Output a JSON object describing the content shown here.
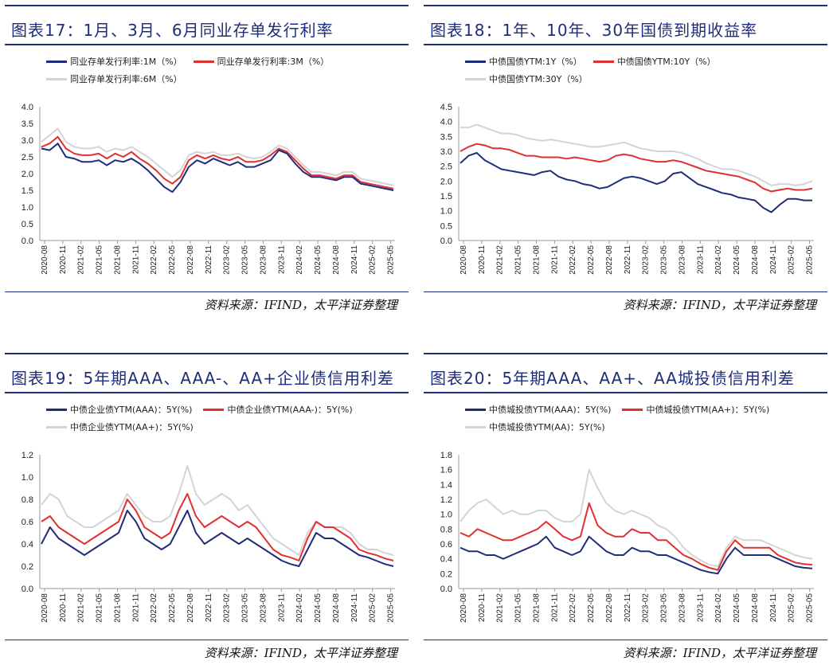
{
  "source_text": "资料来源：IFIND，太平洋证券整理",
  "panels": [
    {
      "title": "图表17：1月、3月、6月同业存单发行利率",
      "legend_rows": [
        [
          0,
          1
        ],
        [
          2
        ]
      ],
      "chart_data": {
        "type": "line",
        "title": "图表17：1月、3月、6月同业存单发行利率",
        "xlabel": "",
        "ylabel": "",
        "ylim": [
          0,
          4.0
        ],
        "yticks": [
          "4.0",
          "3.5",
          "3.0",
          "2.5",
          "2.0",
          "1.5",
          "1.0",
          "0.5",
          "0.0"
        ],
        "xticks": [
          "2020-08",
          "2020-11",
          "2021-02",
          "2021-05",
          "2021-08",
          "2021-11",
          "2022-02",
          "2022-05",
          "2022-08",
          "2022-11",
          "2023-02",
          "2023-05",
          "2023-08",
          "2023-11",
          "2024-02",
          "2024-05",
          "2024-08",
          "2024-11",
          "2025-02",
          "2025-05"
        ],
        "grid": false,
        "legend_position": "top-left",
        "series": [
          {
            "name": "同业存单发行利率:1M（%）",
            "color": "#1f2d7a",
            "values": [
              2.75,
              2.7,
              2.9,
              2.5,
              2.45,
              2.35,
              2.35,
              2.4,
              2.25,
              2.4,
              2.35,
              2.45,
              2.3,
              2.1,
              1.85,
              1.6,
              1.45,
              1.75,
              2.2,
              2.4,
              2.3,
              2.45,
              2.35,
              2.25,
              2.35,
              2.2,
              2.2,
              2.3,
              2.4,
              2.7,
              2.6,
              2.3,
              2.05,
              1.9,
              1.9,
              1.85,
              1.8,
              1.9,
              1.9,
              1.7,
              1.65,
              1.6,
              1.55,
              1.5
            ]
          },
          {
            "name": "同业存单发行利率:3M（%）",
            "color": "#e03030",
            "values": [
              2.8,
              2.9,
              3.1,
              2.75,
              2.6,
              2.55,
              2.55,
              2.6,
              2.45,
              2.6,
              2.5,
              2.65,
              2.45,
              2.3,
              2.1,
              1.85,
              1.7,
              1.9,
              2.4,
              2.55,
              2.45,
              2.55,
              2.45,
              2.4,
              2.5,
              2.35,
              2.35,
              2.4,
              2.55,
              2.75,
              2.65,
              2.4,
              2.15,
              1.95,
              1.95,
              1.9,
              1.85,
              1.95,
              1.95,
              1.75,
              1.7,
              1.65,
              1.6,
              1.55
            ]
          },
          {
            "name": "同业存单发行利率:6M（%）",
            "color": "#d4d4d4",
            "values": [
              2.95,
              3.15,
              3.35,
              2.95,
              2.8,
              2.75,
              2.75,
              2.8,
              2.65,
              2.75,
              2.7,
              2.8,
              2.65,
              2.5,
              2.3,
              2.1,
              1.9,
              2.1,
              2.55,
              2.65,
              2.6,
              2.65,
              2.55,
              2.55,
              2.6,
              2.5,
              2.45,
              2.5,
              2.65,
              2.85,
              2.75,
              2.5,
              2.25,
              2.05,
              2.05,
              2.0,
              1.95,
              2.05,
              2.05,
              1.85,
              1.8,
              1.75,
              1.7,
              1.65
            ]
          }
        ]
      }
    },
    {
      "title": "图表18：1年、10年、30年国债到期收益率",
      "legend_rows": [
        [
          0,
          1
        ],
        [
          2
        ]
      ],
      "chart_data": {
        "type": "line",
        "title": "图表18：1年、10年、30年国债到期收益率",
        "xlabel": "",
        "ylabel": "",
        "ylim": [
          0,
          4.5
        ],
        "yticks": [
          "4.5",
          "4.0",
          "3.5",
          "3.0",
          "2.5",
          "2.0",
          "1.5",
          "1.0",
          "0.5",
          "0.0"
        ],
        "xticks": [
          "2020-08",
          "2020-11",
          "2021-02",
          "2021-05",
          "2021-08",
          "2021-11",
          "2022-02",
          "2022-05",
          "2022-08",
          "2022-11",
          "2023-02",
          "2023-05",
          "2023-08",
          "2023-11",
          "2024-02",
          "2024-05",
          "2024-08",
          "2024-11",
          "2025-02",
          "2025-05"
        ],
        "grid": false,
        "legend_position": "top-left",
        "series": [
          {
            "name": "中债国债YTM:1Y（%）",
            "color": "#1f2d7a",
            "values": [
              2.6,
              2.85,
              2.95,
              2.7,
              2.55,
              2.4,
              2.35,
              2.3,
              2.25,
              2.2,
              2.3,
              2.35,
              2.15,
              2.05,
              2.0,
              1.9,
              1.85,
              1.75,
              1.8,
              1.95,
              2.1,
              2.15,
              2.1,
              2.0,
              1.9,
              2.0,
              2.25,
              2.3,
              2.1,
              1.9,
              1.8,
              1.7,
              1.6,
              1.55,
              1.45,
              1.4,
              1.35,
              1.1,
              0.95,
              1.2,
              1.4,
              1.4,
              1.35,
              1.35
            ]
          },
          {
            "name": "中债国债YTM:10Y（%）",
            "color": "#e03030",
            "values": [
              3.0,
              3.15,
              3.25,
              3.2,
              3.1,
              3.1,
              3.05,
              2.95,
              2.85,
              2.85,
              2.8,
              2.8,
              2.8,
              2.75,
              2.8,
              2.75,
              2.7,
              2.65,
              2.7,
              2.85,
              2.9,
              2.85,
              2.75,
              2.7,
              2.65,
              2.65,
              2.7,
              2.65,
              2.55,
              2.45,
              2.35,
              2.3,
              2.25,
              2.2,
              2.15,
              2.05,
              1.95,
              1.75,
              1.65,
              1.7,
              1.75,
              1.7,
              1.7,
              1.75
            ]
          },
          {
            "name": "中债国债YTM:30Y（%）",
            "color": "#d4d4d4",
            "values": [
              3.8,
              3.8,
              3.9,
              3.8,
              3.7,
              3.6,
              3.6,
              3.55,
              3.45,
              3.4,
              3.35,
              3.4,
              3.35,
              3.3,
              3.25,
              3.2,
              3.15,
              3.15,
              3.2,
              3.25,
              3.3,
              3.2,
              3.1,
              3.05,
              3.0,
              3.0,
              3.0,
              2.95,
              2.85,
              2.75,
              2.6,
              2.5,
              2.4,
              2.4,
              2.35,
              2.25,
              2.15,
              2.0,
              1.85,
              1.9,
              1.9,
              1.85,
              1.9,
              2.0
            ]
          }
        ]
      }
    },
    {
      "title": "图表19：5年期AAA、AAA-、AA+企业债信用利差",
      "legend_rows": [
        [
          0,
          1
        ],
        [
          2
        ]
      ],
      "chart_data": {
        "type": "line",
        "title": "图表19：5年期AAA、AAA-、AA+企业债信用利差",
        "xlabel": "",
        "ylabel": "",
        "ylim": [
          0,
          1.2
        ],
        "yticks": [
          "1.2",
          "1.0",
          "0.8",
          "0.6",
          "0.4",
          "0.2",
          "0.0"
        ],
        "xticks": [
          "2020-08",
          "2020-11",
          "2021-02",
          "2021-05",
          "2021-08",
          "2021-11",
          "2022-02",
          "2022-05",
          "2022-08",
          "2022-11",
          "2023-02",
          "2023-05",
          "2023-08",
          "2023-11",
          "2024-02",
          "2024-05",
          "2024-08",
          "2024-11",
          "2025-02",
          "2025-05"
        ],
        "grid": false,
        "legend_position": "top-left",
        "series": [
          {
            "name": "中债企业债YTM(AAA)：5Y(%)",
            "color": "#1f2d7a",
            "values": [
              0.4,
              0.55,
              0.45,
              0.4,
              0.35,
              0.3,
              0.35,
              0.4,
              0.45,
              0.5,
              0.7,
              0.6,
              0.45,
              0.4,
              0.35,
              0.4,
              0.55,
              0.7,
              0.5,
              0.4,
              0.45,
              0.5,
              0.45,
              0.4,
              0.45,
              0.4,
              0.35,
              0.3,
              0.25,
              0.22,
              0.2,
              0.35,
              0.5,
              0.45,
              0.45,
              0.4,
              0.35,
              0.3,
              0.28,
              0.25,
              0.22,
              0.2
            ]
          },
          {
            "name": "中债企业债YTM(AAA-)：5Y(%)",
            "color": "#e03030",
            "values": [
              0.6,
              0.65,
              0.55,
              0.5,
              0.45,
              0.4,
              0.45,
              0.5,
              0.55,
              0.6,
              0.8,
              0.7,
              0.55,
              0.5,
              0.45,
              0.5,
              0.7,
              0.85,
              0.65,
              0.55,
              0.6,
              0.65,
              0.6,
              0.55,
              0.6,
              0.55,
              0.45,
              0.35,
              0.3,
              0.28,
              0.25,
              0.45,
              0.6,
              0.55,
              0.55,
              0.5,
              0.45,
              0.35,
              0.32,
              0.3,
              0.27,
              0.25
            ]
          },
          {
            "name": "中债企业债YTM(AA+)：5Y(%)",
            "color": "#d4d4d4",
            "values": [
              0.75,
              0.85,
              0.8,
              0.65,
              0.6,
              0.55,
              0.55,
              0.6,
              0.65,
              0.7,
              0.85,
              0.75,
              0.65,
              0.6,
              0.6,
              0.65,
              0.85,
              1.1,
              0.85,
              0.75,
              0.8,
              0.85,
              0.8,
              0.7,
              0.75,
              0.65,
              0.55,
              0.45,
              0.4,
              0.35,
              0.3,
              0.5,
              0.6,
              0.55,
              0.55,
              0.55,
              0.5,
              0.4,
              0.35,
              0.35,
              0.32,
              0.3
            ]
          }
        ]
      }
    },
    {
      "title": "图表20：5年期AAA、AA+、AA城投债信用利差",
      "legend_rows": [
        [
          0,
          1
        ],
        [
          2
        ]
      ],
      "chart_data": {
        "type": "line",
        "title": "图表20：5年期AAA、AA+、AA城投债信用利差",
        "xlabel": "",
        "ylabel": "",
        "ylim": [
          0,
          1.8
        ],
        "yticks": [
          "1.8",
          "1.6",
          "1.4",
          "1.2",
          "1.0",
          "0.8",
          "0.6",
          "0.4",
          "0.2",
          "0.0"
        ],
        "xticks": [
          "2020-08",
          "2020-11",
          "2021-02",
          "2021-05",
          "2021-08",
          "2021-11",
          "2022-02",
          "2022-05",
          "2022-08",
          "2022-11",
          "2023-02",
          "2023-05",
          "2023-08",
          "2023-11",
          "2024-02",
          "2024-05",
          "2024-08",
          "2024-11",
          "2025-02",
          "2025-05"
        ],
        "grid": false,
        "legend_position": "top-left",
        "series": [
          {
            "name": "中债城投债YTM(AAA)：5Y(%)",
            "color": "#1f2d7a",
            "values": [
              0.55,
              0.5,
              0.5,
              0.45,
              0.45,
              0.4,
              0.45,
              0.5,
              0.55,
              0.6,
              0.7,
              0.55,
              0.5,
              0.45,
              0.5,
              0.7,
              0.6,
              0.5,
              0.45,
              0.45,
              0.55,
              0.5,
              0.5,
              0.45,
              0.45,
              0.4,
              0.35,
              0.3,
              0.25,
              0.22,
              0.2,
              0.4,
              0.55,
              0.45,
              0.45,
              0.45,
              0.45,
              0.4,
              0.35,
              0.3,
              0.28,
              0.27
            ]
          },
          {
            "name": "中债城投债YTM(AA+)：5Y(%)",
            "color": "#e03030",
            "values": [
              0.75,
              0.7,
              0.8,
              0.75,
              0.7,
              0.65,
              0.65,
              0.7,
              0.75,
              0.8,
              0.9,
              0.8,
              0.7,
              0.65,
              0.7,
              1.15,
              0.85,
              0.75,
              0.7,
              0.7,
              0.8,
              0.75,
              0.75,
              0.65,
              0.65,
              0.55,
              0.45,
              0.4,
              0.33,
              0.28,
              0.25,
              0.5,
              0.65,
              0.55,
              0.55,
              0.55,
              0.55,
              0.45,
              0.4,
              0.35,
              0.33,
              0.32
            ]
          },
          {
            "name": "中债城投债YTM(AA)：5Y(%)",
            "color": "#d4d4d4",
            "values": [
              0.9,
              1.05,
              1.15,
              1.2,
              1.1,
              1.0,
              1.05,
              1.0,
              1.0,
              1.05,
              1.05,
              0.95,
              0.9,
              0.9,
              1.0,
              1.6,
              1.35,
              1.15,
              1.05,
              1.0,
              1.05,
              1.0,
              0.95,
              0.85,
              0.8,
              0.7,
              0.55,
              0.45,
              0.38,
              0.32,
              0.3,
              0.55,
              0.7,
              0.65,
              0.65,
              0.65,
              0.6,
              0.55,
              0.5,
              0.45,
              0.42,
              0.4
            ]
          }
        ]
      }
    }
  ]
}
